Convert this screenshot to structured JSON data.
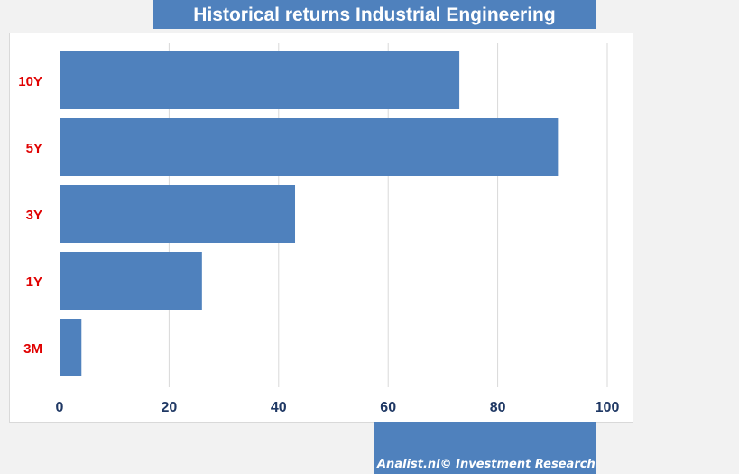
{
  "chart_data": {
    "type": "bar",
    "orientation": "horizontal",
    "title": "Historical returns Industrial Engineering",
    "categories": [
      "10Y",
      "5Y",
      "3Y",
      "1Y",
      "3M"
    ],
    "values": [
      73,
      91,
      43,
      26,
      4
    ],
    "xlim": [
      0,
      100
    ],
    "xticks": [
      0,
      20,
      40,
      60,
      80,
      100
    ],
    "grid": true,
    "xlabel": "",
    "ylabel": "",
    "bar_color": "#4f81bd",
    "category_label_color": "#e00000",
    "tick_label_color": "#1f3864"
  },
  "footer": {
    "text": "Analist.nl© Investment Research"
  }
}
